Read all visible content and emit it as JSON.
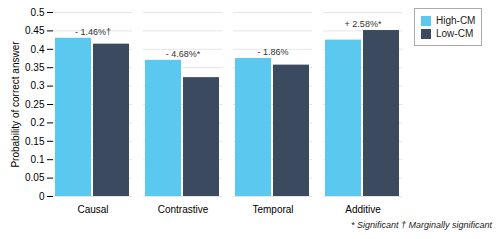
{
  "chart_data": {
    "type": "bar",
    "categories": [
      "Causal",
      "Contrastive",
      "Temporal",
      "Additive"
    ],
    "series": [
      {
        "name": "High-CM",
        "color": "#5BC8F0",
        "values": [
          0.43,
          0.37,
          0.375,
          0.425
        ]
      },
      {
        "name": "Low-CM",
        "color": "#3B4A5E",
        "values": [
          0.414,
          0.323,
          0.357,
          0.451
        ]
      }
    ],
    "annotations": [
      {
        "category": "Causal",
        "text": "- 1.46%†"
      },
      {
        "category": "Contrastive",
        "text": "- 4.68%*"
      },
      {
        "category": "Temporal",
        "text": "- 1.86%"
      },
      {
        "category": "Additive",
        "text": "+ 2.58%*"
      }
    ],
    "ylabel": "Probability of correct answer",
    "ylim": [
      0,
      0.5
    ],
    "yticks": [
      0,
      0.05,
      0.1,
      0.15,
      0.2,
      0.25,
      0.3,
      0.35,
      0.4,
      0.45,
      0.5
    ],
    "grid": true,
    "legend": "right",
    "footnote": "* Significant   † Marginally significant"
  }
}
